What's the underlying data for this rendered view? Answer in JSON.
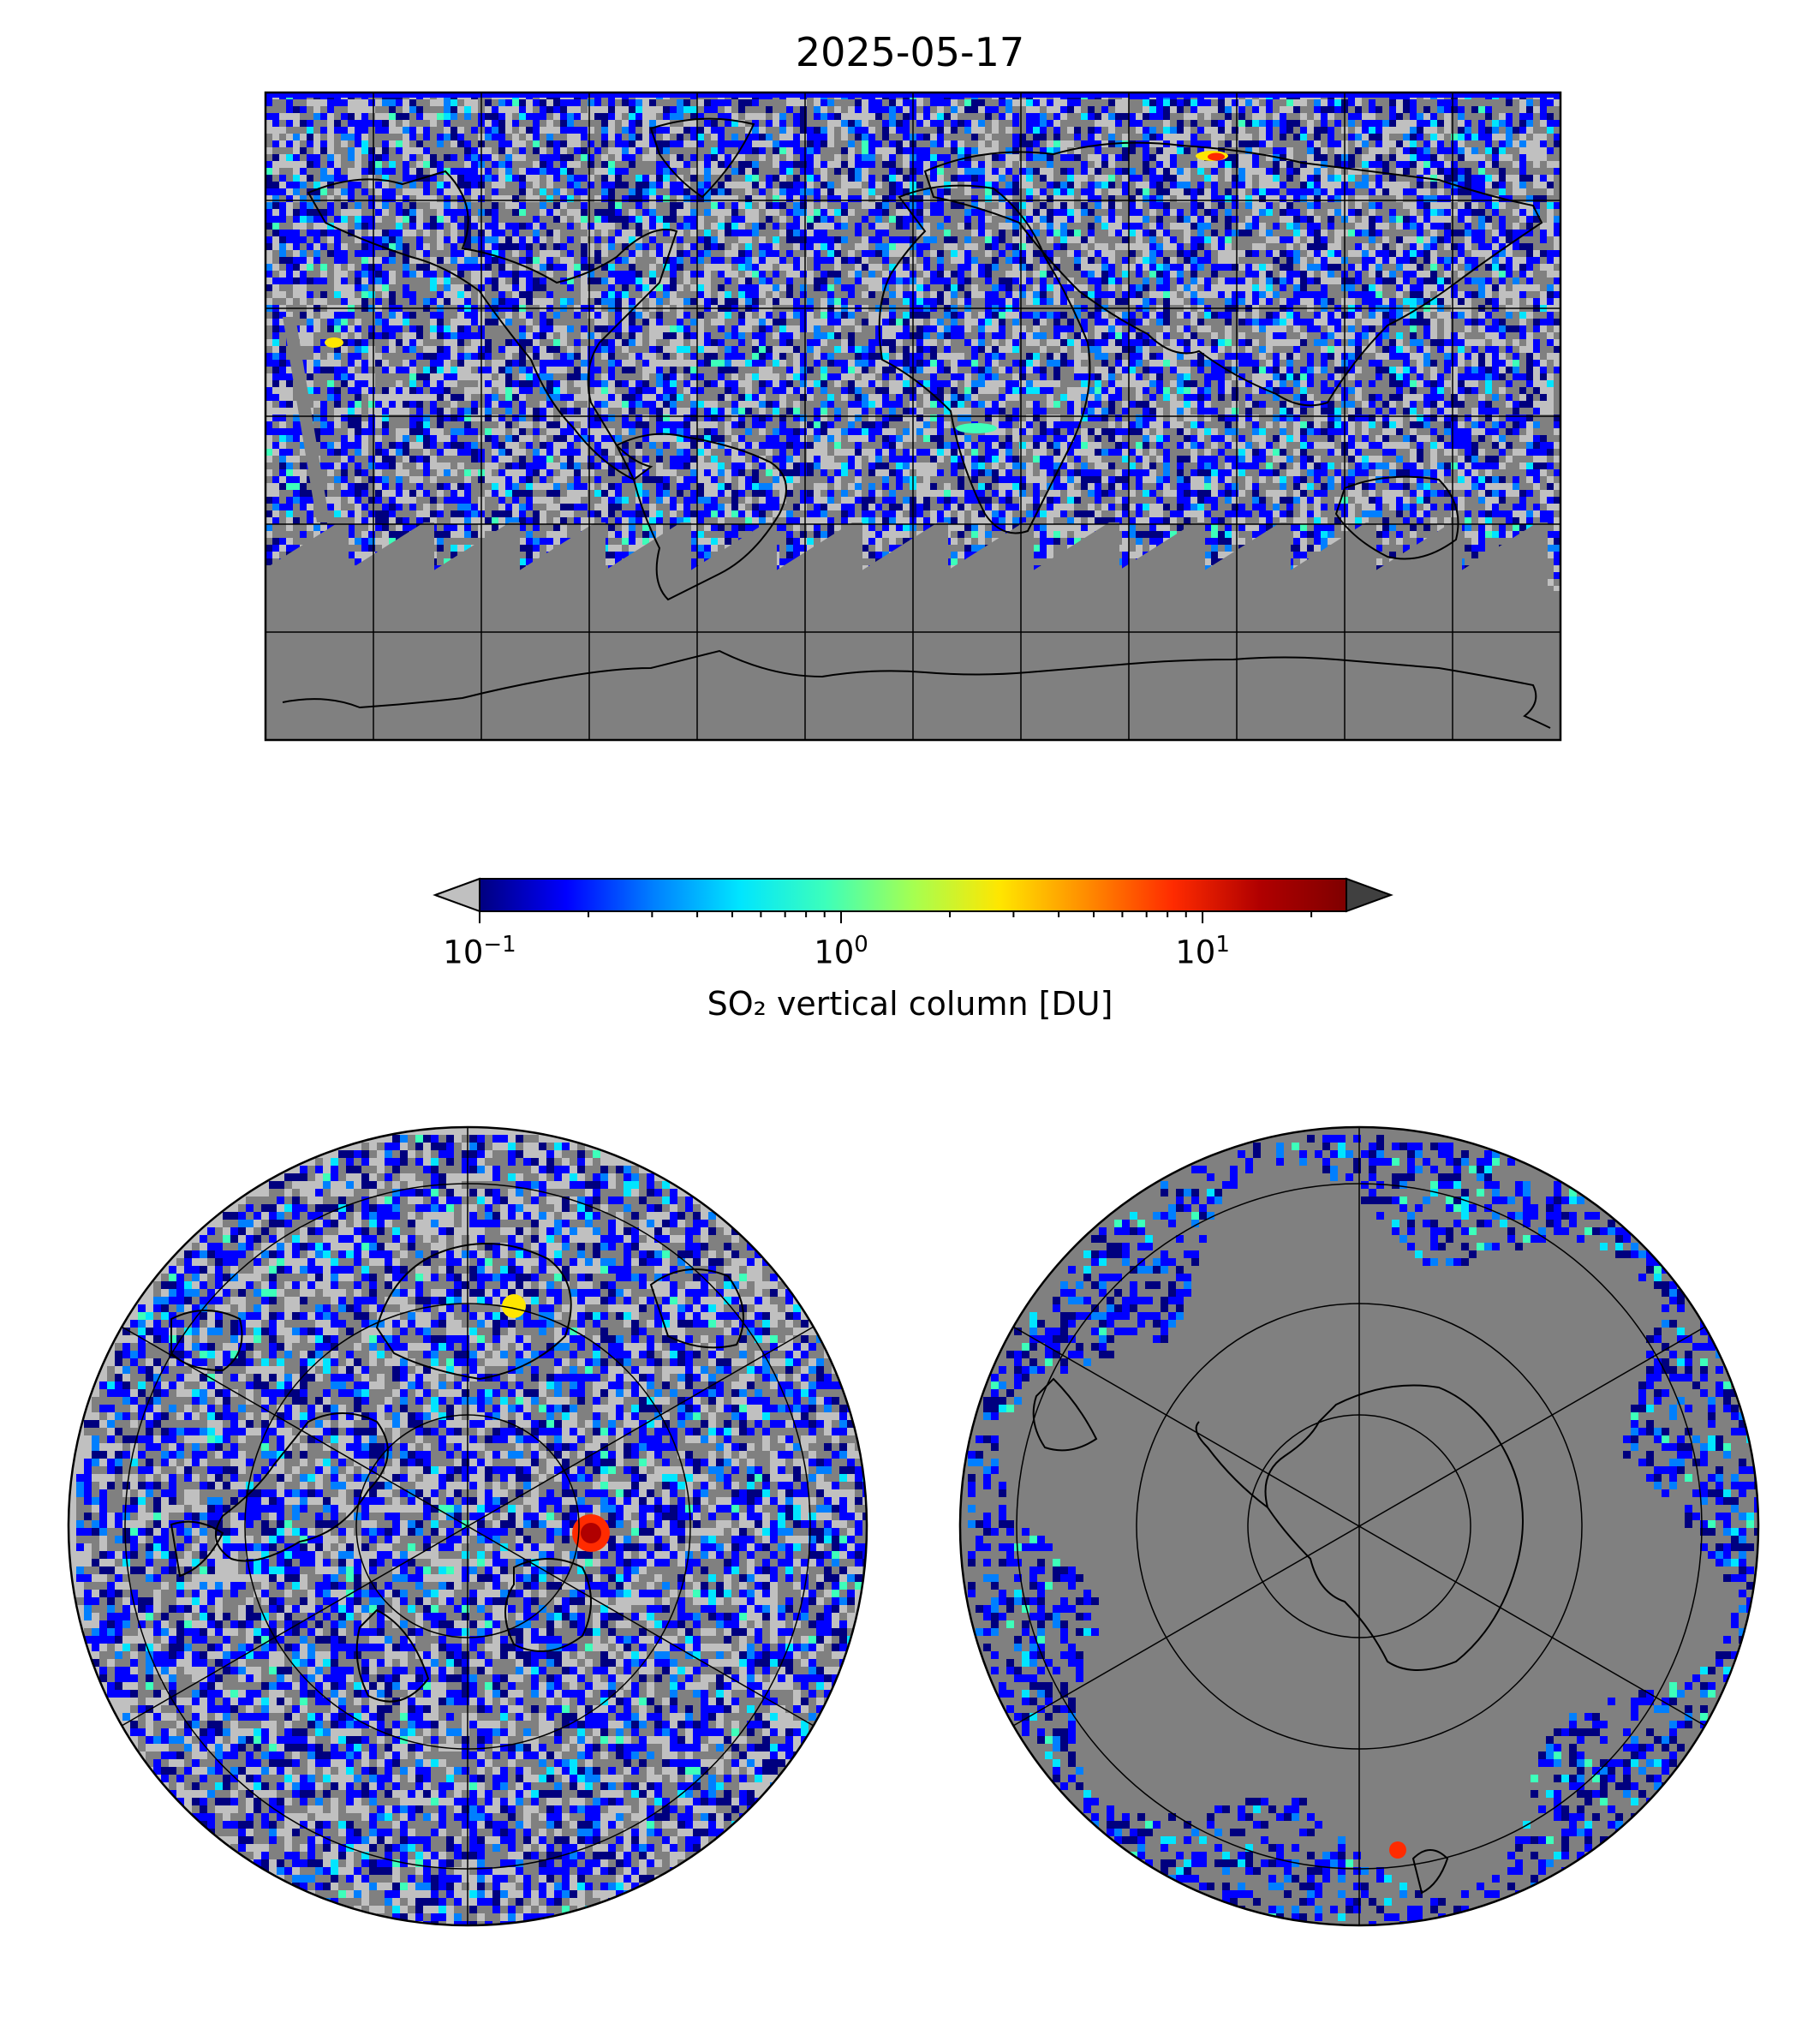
{
  "figure": {
    "date_title": "2025-05-17"
  },
  "colors": {
    "no_data": "#808080",
    "low_value": "#c0c0c0",
    "coastline": "#000000",
    "gridline": "#000000",
    "colormap": [
      "#00007f",
      "#0000ff",
      "#007fff",
      "#00e5ff",
      "#3dffba",
      "#a5ff51",
      "#ffe600",
      "#ff8c00",
      "#ff2b00",
      "#b00000",
      "#7f0000"
    ],
    "extend_min": "#c0c0c0",
    "extend_max": "#404040"
  },
  "maps": [
    {
      "name": "global-map",
      "projection": "plate-carree",
      "icon": "world-map-icon"
    },
    {
      "name": "north-polar-map",
      "projection": "north-polar-stereographic",
      "icon": "arctic-map-icon"
    },
    {
      "name": "south-polar-map",
      "projection": "south-polar-stereographic",
      "icon": "antarctic-map-icon"
    }
  ],
  "colorbar": {
    "label": "SO₂ vertical column [DU]",
    "scale": "log",
    "range": [
      0.1,
      25
    ],
    "extend": "both",
    "ticks": [
      {
        "base": "10",
        "exp": "−1",
        "value": 0.1
      },
      {
        "base": "10",
        "exp": "0",
        "value": 1
      },
      {
        "base": "10",
        "exp": "1",
        "value": 10
      }
    ]
  }
}
